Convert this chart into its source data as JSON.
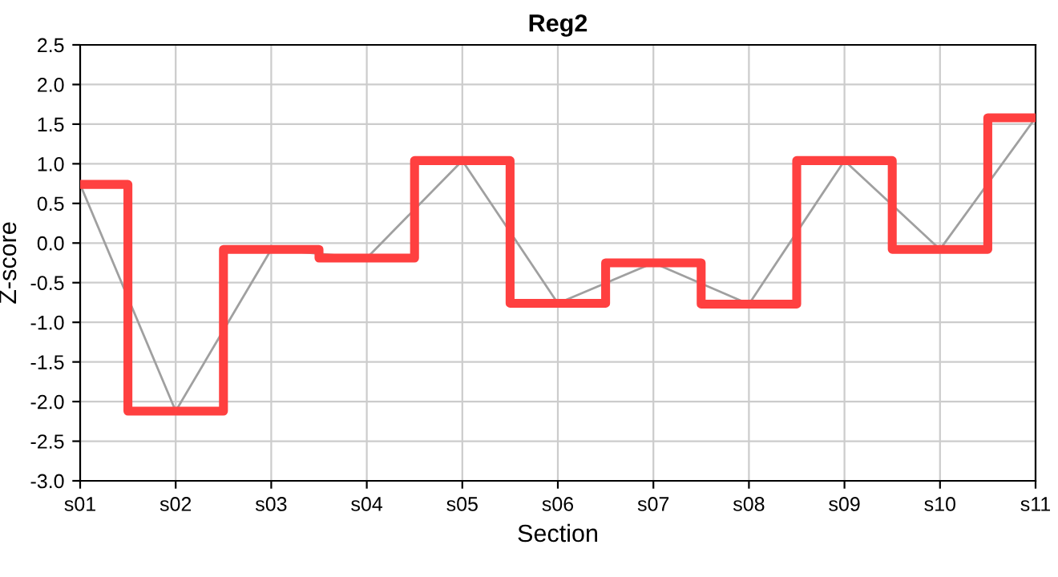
{
  "chart_data": {
    "type": "line",
    "title": "Reg2",
    "xlabel": "Section",
    "ylabel": "Z-score",
    "categories": [
      "s01",
      "s02",
      "s03",
      "s04",
      "s05",
      "s06",
      "s07",
      "s08",
      "s09",
      "s10",
      "s11"
    ],
    "series": [
      {
        "color": "#a0a0a0",
        "values": [
          0.74,
          -2.12,
          -0.08,
          -0.19,
          1.04,
          -0.76,
          -0.25,
          -0.77,
          1.04,
          -0.08,
          1.58
        ]
      },
      {
        "type": "step",
        "color": "#ff4040",
        "values": [
          0.74,
          -2.12,
          -0.08,
          -0.19,
          1.04,
          -0.76,
          -0.25,
          -0.77,
          1.04,
          -0.08,
          1.58
        ]
      }
    ],
    "ylim": [
      -3,
      2.5
    ],
    "yticks": [
      {
        "value": -3,
        "label": "-3.0"
      },
      {
        "value": -2.5,
        "label": "-2.5"
      },
      {
        "value": -2,
        "label": "-2.0"
      },
      {
        "value": -1.5,
        "label": "-1.5"
      },
      {
        "value": -1,
        "label": "-1.0"
      },
      {
        "value": -0.5,
        "label": "-0.5"
      },
      {
        "value": 0,
        "label": "0.0"
      },
      {
        "value": 0.5,
        "label": "0.5"
      },
      {
        "value": 1,
        "label": "1.0"
      },
      {
        "value": 1.5,
        "label": "1.5"
      },
      {
        "value": 2,
        "label": "2.0"
      },
      {
        "value": 2.5,
        "label": "2.5"
      }
    ],
    "grid": true,
    "marker": "none",
    "line_style": "solid"
  }
}
